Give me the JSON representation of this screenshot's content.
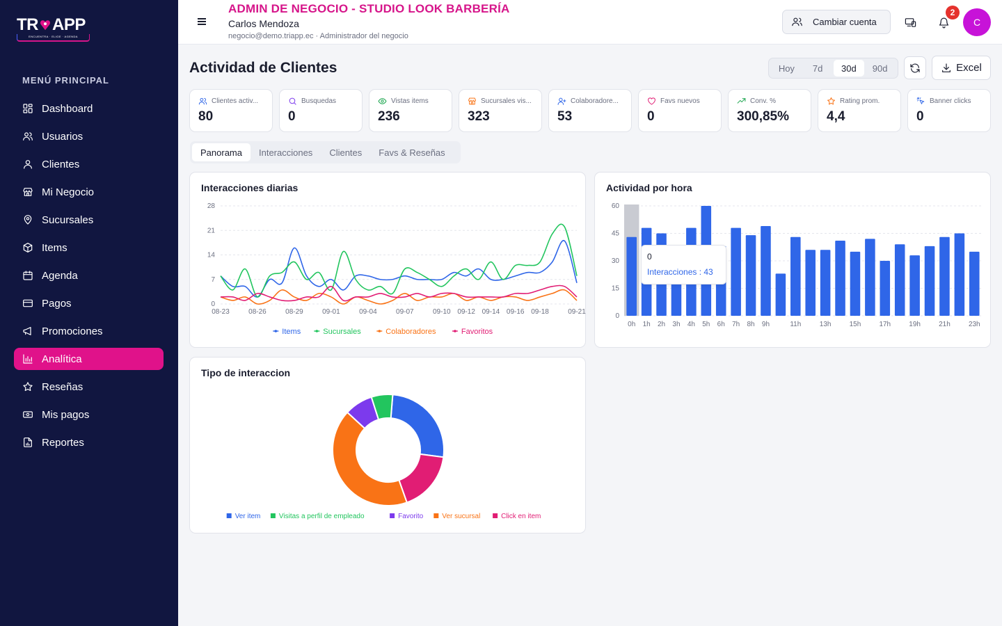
{
  "brand": {
    "logo_text_left": "TR",
    "logo_text_right": "APP",
    "logo_sub": "ENCUENTRA · ELIGE · AGENDA"
  },
  "sidebar": {
    "section_title": "MENÚ PRINCIPAL",
    "items": [
      {
        "label": "Dashboard",
        "icon": "dashboard-icon"
      },
      {
        "label": "Usuarios",
        "icon": "users-icon"
      },
      {
        "label": "Clientes",
        "icon": "user-icon"
      },
      {
        "label": "Mi Negocio",
        "icon": "store-icon"
      },
      {
        "label": "Sucursales",
        "icon": "map-pin-icon"
      },
      {
        "label": "Items",
        "icon": "box-icon"
      },
      {
        "label": "Agenda",
        "icon": "calendar-icon"
      },
      {
        "label": "Pagos",
        "icon": "credit-card-icon"
      },
      {
        "label": "Promociones",
        "icon": "megaphone-icon"
      },
      {
        "label": "Analítica",
        "icon": "bar-chart-icon",
        "active": true
      },
      {
        "label": "Reseñas",
        "icon": "star-icon"
      },
      {
        "label": "Mis pagos",
        "icon": "banknote-icon"
      },
      {
        "label": "Reportes",
        "icon": "file-chart-icon"
      }
    ]
  },
  "header": {
    "title": "ADMIN DE NEGOCIO - STUDIO LOOK BARBERÍA",
    "user_name": "Carlos Mendoza",
    "user_meta": "negocio@demo.triapp.ec · Administrador del negocio",
    "switch_account": "Cambiar cuenta",
    "notification_count": "2",
    "avatar_initial": "C"
  },
  "page": {
    "title": "Actividad de Clientes",
    "ranges": [
      "Hoy",
      "7d",
      "30d",
      "90d"
    ],
    "active_range": "30d",
    "excel_label": "Excel"
  },
  "kpis": [
    {
      "label": "Clientes activ...",
      "value": "80",
      "icon": "users-icon",
      "color": "#2f66e8"
    },
    {
      "label": "Busquedas",
      "value": "0",
      "icon": "search-icon",
      "color": "#7c3aed"
    },
    {
      "label": "Vistas items",
      "value": "236",
      "icon": "eye-icon",
      "color": "#16a34a"
    },
    {
      "label": "Sucursales vis...",
      "value": "323",
      "icon": "store-icon",
      "color": "#f97316"
    },
    {
      "label": "Colaboradore...",
      "value": "53",
      "icon": "user-plus-icon",
      "color": "#2f66e8"
    },
    {
      "label": "Favs nuevos",
      "value": "0",
      "icon": "heart-icon",
      "color": "#e11d74"
    },
    {
      "label": "Conv. %",
      "value": "300,85%",
      "icon": "trending-up-icon",
      "color": "#16a34a"
    },
    {
      "label": "Rating prom.",
      "value": "4,4",
      "icon": "star-icon",
      "color": "#f97316"
    },
    {
      "label": "Banner clicks",
      "value": "0",
      "icon": "click-icon",
      "color": "#2f66e8"
    }
  ],
  "tabs": [
    "Panorama",
    "Interacciones",
    "Clientes",
    "Favs & Reseñas"
  ],
  "active_tab": "Panorama",
  "charts": {
    "daily": {
      "title": "Interacciones diarias"
    },
    "hourly": {
      "title": "Actividad por hora",
      "tooltip_label": "0",
      "tooltip_value": "Interacciones : 43"
    },
    "type": {
      "title": "Tipo de interaccion"
    }
  },
  "chart_data": [
    {
      "type": "line",
      "title": "Interacciones diarias",
      "x": [
        "08-23",
        "08-24",
        "08-25",
        "08-26",
        "08-27",
        "08-28",
        "08-29",
        "08-30",
        "08-31",
        "09-01",
        "09-02",
        "09-03",
        "09-04",
        "09-05",
        "09-06",
        "09-07",
        "09-08",
        "09-09",
        "09-10",
        "09-11",
        "09-12",
        "09-13",
        "09-14",
        "09-15",
        "09-16",
        "09-17",
        "09-18",
        "09-19",
        "09-20",
        "09-21"
      ],
      "x_ticks": [
        "08-23",
        "08-26",
        "08-29",
        "09-01",
        "09-04",
        "09-07",
        "09-10",
        "09-12",
        "09-14",
        "09-16",
        "09-18",
        "09-21"
      ],
      "ylim": [
        0,
        28
      ],
      "y_ticks": [
        0,
        7,
        14,
        21,
        28
      ],
      "series": [
        {
          "name": "Items",
          "color": "#2f66e8",
          "values": [
            8,
            5,
            5,
            2,
            7,
            6,
            16,
            8,
            5,
            7,
            4,
            8,
            8,
            7,
            7,
            8,
            7,
            7,
            7,
            9,
            8,
            10,
            7,
            7,
            8,
            9,
            9,
            12,
            18,
            6
          ]
        },
        {
          "name": "Sucursales",
          "color": "#22c55e",
          "values": [
            8,
            4,
            10,
            2,
            8,
            9,
            12,
            7,
            9,
            4,
            15,
            7,
            4,
            5,
            3,
            10,
            9,
            7,
            5,
            8,
            10,
            7,
            12,
            7,
            11,
            11,
            12,
            20,
            22,
            8
          ]
        },
        {
          "name": "Colaboradores",
          "color": "#f97316",
          "values": [
            2,
            1,
            2,
            0,
            1,
            4,
            2,
            1,
            3,
            2,
            0,
            2,
            1,
            0,
            1,
            3,
            1,
            2,
            2,
            3,
            1,
            2,
            1,
            2,
            2,
            1,
            2,
            3,
            4,
            1
          ]
        },
        {
          "name": "Favoritos",
          "color": "#e11d74",
          "values": [
            2,
            2,
            1,
            3,
            2,
            1,
            1,
            2,
            2,
            5,
            1,
            2,
            2,
            3,
            2,
            2,
            3,
            2,
            3,
            3,
            2,
            2,
            2,
            2,
            3,
            3,
            4,
            5,
            5,
            2
          ]
        }
      ]
    },
    {
      "type": "bar",
      "title": "Actividad por hora",
      "categories": [
        "0h",
        "1h",
        "2h",
        "3h",
        "4h",
        "5h",
        "6h",
        "7h",
        "8h",
        "9h",
        "10h",
        "11h",
        "12h",
        "13h",
        "14h",
        "15h",
        "16h",
        "17h",
        "18h",
        "19h",
        "20h",
        "21h",
        "22h",
        "23h"
      ],
      "x_ticks": [
        "0h",
        "1h",
        "2h",
        "3h",
        "4h",
        "5h",
        "6h",
        "7h",
        "8h",
        "9h",
        "11h",
        "13h",
        "15h",
        "17h",
        "19h",
        "21h",
        "23h"
      ],
      "values": [
        43,
        48,
        45,
        34,
        48,
        60,
        38,
        48,
        44,
        49,
        23,
        43,
        36,
        36,
        41,
        35,
        42,
        30,
        39,
        33,
        38,
        43,
        45,
        35
      ],
      "ylim": [
        0,
        60
      ],
      "y_ticks": [
        0,
        15,
        30,
        45,
        60
      ],
      "color": "#2f66e8",
      "highlight_index": 0
    },
    {
      "type": "pie",
      "title": "Tipo de interaccion",
      "slices": [
        {
          "name": "Ver item",
          "value": 25,
          "color": "#2f66e8"
        },
        {
          "name": "Click en item",
          "value": 17,
          "color": "#e11d74"
        },
        {
          "name": "Ver sucursal",
          "value": 41,
          "color": "#f97316"
        },
        {
          "name": "Favorito",
          "value": 8,
          "color": "#7c3aed"
        },
        {
          "name": "Visitas a perfil de empleado",
          "value": 6,
          "color": "#22c55e"
        }
      ],
      "legend_order": [
        "Ver item",
        "Visitas a perfil de empleado",
        "Favorito",
        "Ver sucursal",
        "Click en item"
      ]
    }
  ]
}
